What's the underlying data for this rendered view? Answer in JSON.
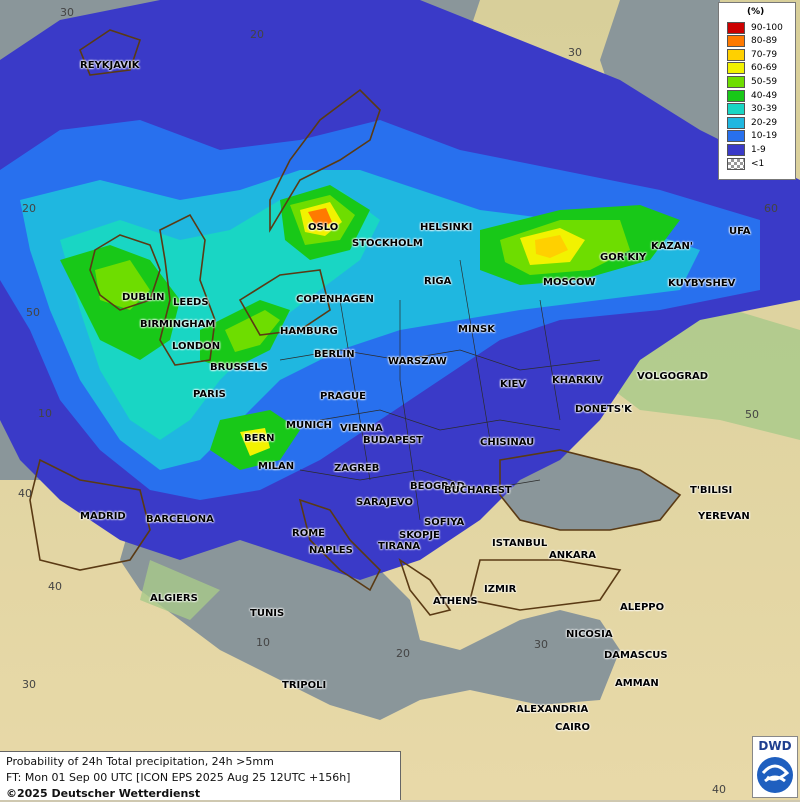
{
  "legend": {
    "unit": "(%)",
    "items": [
      {
        "label": "90-100",
        "color": "#cc0000"
      },
      {
        "label": "80-89",
        "color": "#ff7a00"
      },
      {
        "label": "70-79",
        "color": "#ffd000"
      },
      {
        "label": "60-69",
        "color": "#f2f200"
      },
      {
        "label": "50-59",
        "color": "#6edd00"
      },
      {
        "label": "40-49",
        "color": "#18c818"
      },
      {
        "label": "30-39",
        "color": "#19d6c4"
      },
      {
        "label": "20-29",
        "color": "#1fb7e0"
      },
      {
        "label": "10-19",
        "color": "#2870ee"
      },
      {
        "label": "1-9",
        "color": "#3a3ac8"
      },
      {
        "label": "<1",
        "color": "checker"
      }
    ]
  },
  "footer": {
    "line1": "Probability of 24h Total precipitation, 24h >5mm",
    "line2": "FT: Mon 01 Sep 00 UTC [ICON EPS 2025 Aug 25 12UTC +156h]",
    "copyright": "©2025 Deutscher Wetterdienst"
  },
  "logo": {
    "text": "DWD"
  },
  "grid_labels": [
    "30",
    "20",
    "10",
    "20",
    "30",
    "40",
    "50",
    "40",
    "50",
    "60",
    "20",
    "30",
    "40",
    "30",
    "10"
  ],
  "cities": [
    "REYKJAVIK",
    "OSLO",
    "STOCKHOLM",
    "HELSINKI",
    "DUBLIN",
    "LEEDS",
    "BIRMINGHAM",
    "LONDON",
    "COPENHAGEN",
    "RIGA",
    "MOSCOW",
    "GOR'KIY",
    "KAZAN'",
    "UFA",
    "KUYBYSHEV",
    "HAMBURG",
    "BERLIN",
    "MINSK",
    "WARSZAW",
    "BRUSSELS",
    "PARIS",
    "PRAGUE",
    "KIEV",
    "KHARKIV",
    "VOLGOGRAD",
    "MUNICH",
    "VIENNA",
    "DONETS'K",
    "BERN",
    "BUDAPEST",
    "CHISINAU",
    "MILAN",
    "ZAGREB",
    "BEOGRAD",
    "BUCHAREST",
    "T'BILISI",
    "MADRID",
    "BARCELONA",
    "SARAJEVO",
    "SOFIYA",
    "YEREVAN",
    "ROME",
    "SKOPJE",
    "NAPLES",
    "TIRANA",
    "ISTANBUL",
    "ANKARA",
    "ALGIERS",
    "IZMIR",
    "ATHENS",
    "TUNIS",
    "ALEPPO",
    "NICOSIA",
    "DAMASCUS",
    "AMMAN",
    "TRIPOLI",
    "ALEXANDRIA",
    "CAIRO"
  ]
}
